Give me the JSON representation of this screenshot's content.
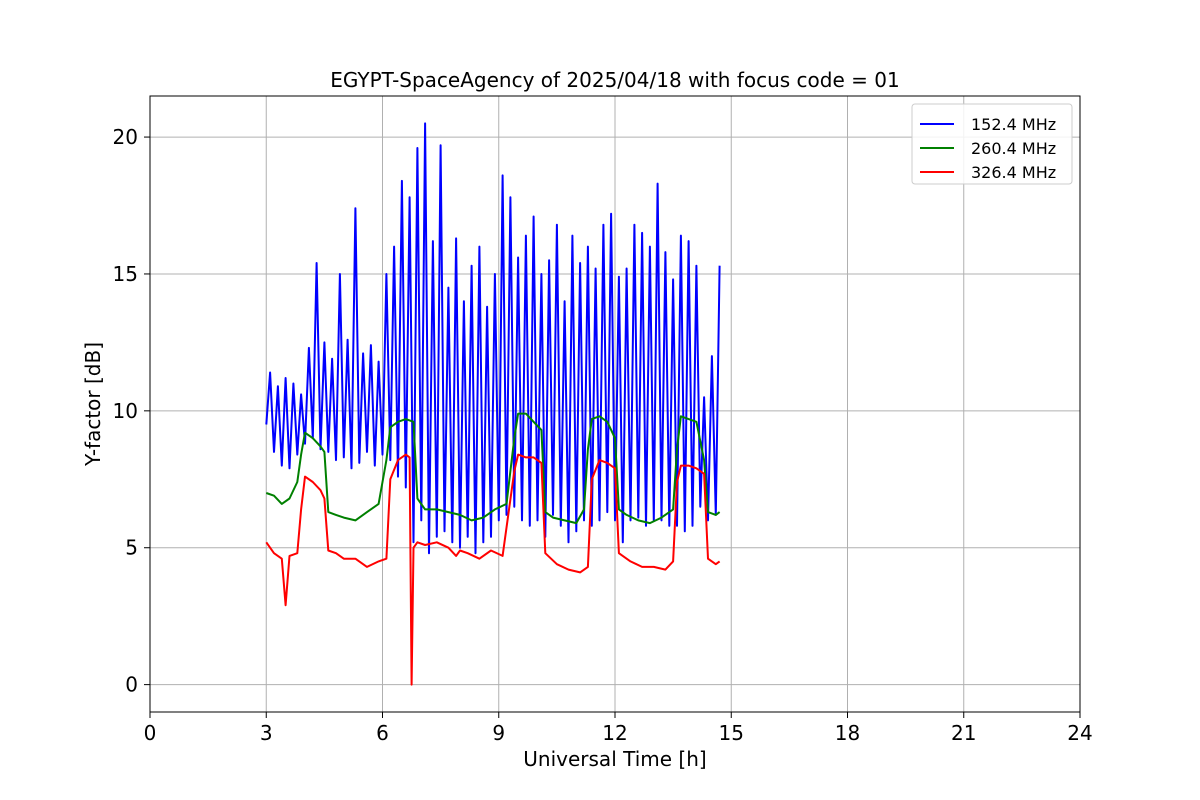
{
  "chart_data": {
    "type": "line",
    "title": "EGYPT-SpaceAgency of 2025/04/18 with focus code = 01",
    "xlabel": "Universal Time [h]",
    "ylabel": "Y-factor [dB]",
    "xlim": [
      0,
      24
    ],
    "ylim": [
      -1,
      21.5
    ],
    "xticks": [
      0,
      3,
      6,
      9,
      12,
      15,
      18,
      21,
      24
    ],
    "yticks": [
      0,
      5,
      10,
      15,
      20
    ],
    "grid": true,
    "legend_position": "top-right",
    "series": [
      {
        "name": "152.4 MHz",
        "color": "#0000ff",
        "x": [
          3.0,
          3.1,
          3.2,
          3.3,
          3.4,
          3.5,
          3.6,
          3.7,
          3.8,
          3.9,
          4.0,
          4.1,
          4.2,
          4.3,
          4.4,
          4.5,
          4.6,
          4.7,
          4.8,
          4.9,
          5.0,
          5.1,
          5.2,
          5.3,
          5.4,
          5.5,
          5.6,
          5.7,
          5.8,
          5.9,
          6.0,
          6.1,
          6.2,
          6.3,
          6.4,
          6.5,
          6.6,
          6.7,
          6.8,
          6.9,
          7.0,
          7.1,
          7.2,
          7.3,
          7.4,
          7.5,
          7.6,
          7.7,
          7.8,
          7.9,
          8.0,
          8.1,
          8.2,
          8.3,
          8.4,
          8.5,
          8.6,
          8.7,
          8.8,
          8.9,
          9.0,
          9.1,
          9.2,
          9.3,
          9.4,
          9.5,
          9.6,
          9.7,
          9.8,
          9.9,
          10.0,
          10.1,
          10.2,
          10.3,
          10.4,
          10.5,
          10.6,
          10.7,
          10.8,
          10.9,
          11.0,
          11.1,
          11.2,
          11.3,
          11.4,
          11.5,
          11.6,
          11.7,
          11.8,
          11.9,
          12.0,
          12.1,
          12.2,
          12.3,
          12.4,
          12.5,
          12.6,
          12.7,
          12.8,
          12.9,
          13.0,
          13.1,
          13.2,
          13.3,
          13.4,
          13.5,
          13.6,
          13.7,
          13.8,
          13.9,
          14.0,
          14.1,
          14.2,
          14.3,
          14.4,
          14.5,
          14.6,
          14.7
        ],
        "y": [
          9.5,
          11.4,
          8.5,
          10.9,
          8.0,
          11.2,
          7.9,
          11.0,
          8.4,
          10.6,
          8.8,
          12.3,
          9.0,
          15.4,
          8.6,
          12.5,
          8.5,
          11.9,
          8.2,
          15.0,
          8.3,
          12.6,
          7.9,
          17.4,
          8.1,
          12.1,
          8.5,
          12.4,
          8.0,
          11.8,
          8.4,
          15.0,
          8.2,
          16.0,
          7.6,
          18.4,
          7.2,
          17.8,
          5.2,
          19.6,
          6.0,
          20.5,
          4.8,
          16.2,
          5.4,
          19.7,
          5.6,
          14.5,
          5.2,
          16.3,
          5.0,
          14.0,
          5.4,
          15.3,
          4.8,
          16.0,
          5.2,
          13.8,
          5.4,
          15.0,
          6.0,
          18.6,
          6.2,
          17.8,
          6.5,
          15.6,
          6.0,
          16.4,
          5.8,
          17.1,
          6.0,
          15.0,
          5.4,
          15.5,
          6.2,
          16.8,
          5.8,
          14.0,
          5.2,
          16.4,
          5.6,
          15.4,
          6.0,
          16.0,
          5.8,
          15.2,
          6.0,
          16.8,
          6.3,
          17.2,
          6.0,
          14.9,
          5.2,
          15.2,
          6.0,
          16.8,
          6.1,
          16.5,
          5.8,
          16.0,
          6.0,
          18.3,
          6.0,
          15.8,
          5.8,
          14.8,
          5.8,
          16.4,
          5.6,
          16.2,
          5.8,
          15.3,
          6.5,
          10.5,
          6.0,
          12.0,
          6.2,
          15.3
        ]
      },
      {
        "name": "260.4 MHz",
        "color": "#008000",
        "x": [
          3.0,
          3.2,
          3.4,
          3.6,
          3.8,
          3.9,
          4.0,
          4.2,
          4.4,
          4.5,
          4.6,
          4.8,
          5.0,
          5.3,
          5.6,
          5.9,
          6.1,
          6.2,
          6.4,
          6.6,
          6.8,
          6.9,
          7.1,
          7.4,
          7.7,
          8.0,
          8.3,
          8.6,
          8.9,
          9.2,
          9.4,
          9.5,
          9.7,
          9.9,
          10.1,
          10.2,
          10.4,
          10.7,
          11.0,
          11.2,
          11.3,
          11.4,
          11.6,
          11.8,
          12.0,
          12.1,
          12.3,
          12.6,
          12.9,
          13.2,
          13.5,
          13.6,
          13.7,
          13.9,
          14.1,
          14.3,
          14.4,
          14.6,
          14.7
        ],
        "y": [
          7.0,
          6.9,
          6.6,
          6.8,
          7.4,
          8.4,
          9.2,
          9.0,
          8.7,
          8.5,
          6.3,
          6.2,
          6.1,
          6.0,
          6.3,
          6.6,
          8.2,
          9.4,
          9.6,
          9.7,
          9.6,
          6.8,
          6.4,
          6.4,
          6.3,
          6.2,
          6.0,
          6.1,
          6.4,
          6.6,
          9.0,
          9.9,
          9.9,
          9.6,
          9.3,
          6.3,
          6.1,
          6.0,
          5.9,
          6.4,
          8.6,
          9.7,
          9.8,
          9.6,
          9.0,
          6.4,
          6.2,
          6.0,
          5.9,
          6.1,
          6.4,
          8.6,
          9.8,
          9.7,
          9.6,
          8.2,
          6.3,
          6.2,
          6.3
        ]
      },
      {
        "name": "326.4 MHz",
        "color": "#ff0000",
        "x": [
          3.0,
          3.2,
          3.4,
          3.5,
          3.6,
          3.8,
          3.9,
          4.0,
          4.2,
          4.4,
          4.5,
          4.6,
          4.8,
          5.0,
          5.3,
          5.6,
          5.9,
          6.1,
          6.2,
          6.4,
          6.6,
          6.7,
          6.75,
          6.8,
          6.9,
          7.1,
          7.4,
          7.7,
          7.9,
          8.0,
          8.2,
          8.5,
          8.8,
          9.1,
          9.4,
          9.5,
          9.7,
          9.9,
          10.1,
          10.2,
          10.5,
          10.8,
          11.1,
          11.3,
          11.4,
          11.6,
          11.8,
          12.0,
          12.1,
          12.4,
          12.7,
          13.0,
          13.3,
          13.5,
          13.6,
          13.7,
          13.9,
          14.1,
          14.3,
          14.4,
          14.6,
          14.7
        ],
        "y": [
          5.2,
          4.8,
          4.6,
          2.9,
          4.7,
          4.8,
          6.4,
          7.6,
          7.4,
          7.1,
          6.8,
          4.9,
          4.8,
          4.6,
          4.6,
          4.3,
          4.5,
          4.6,
          7.5,
          8.2,
          8.4,
          8.3,
          0.0,
          5.0,
          5.2,
          5.1,
          5.2,
          5.0,
          4.7,
          4.9,
          4.8,
          4.6,
          4.9,
          4.7,
          7.8,
          8.4,
          8.3,
          8.3,
          8.1,
          4.8,
          4.4,
          4.2,
          4.1,
          4.3,
          7.5,
          8.2,
          8.1,
          7.9,
          4.8,
          4.5,
          4.3,
          4.3,
          4.2,
          4.5,
          7.4,
          8.0,
          8.0,
          7.9,
          7.7,
          4.6,
          4.4,
          4.5
        ]
      }
    ]
  }
}
